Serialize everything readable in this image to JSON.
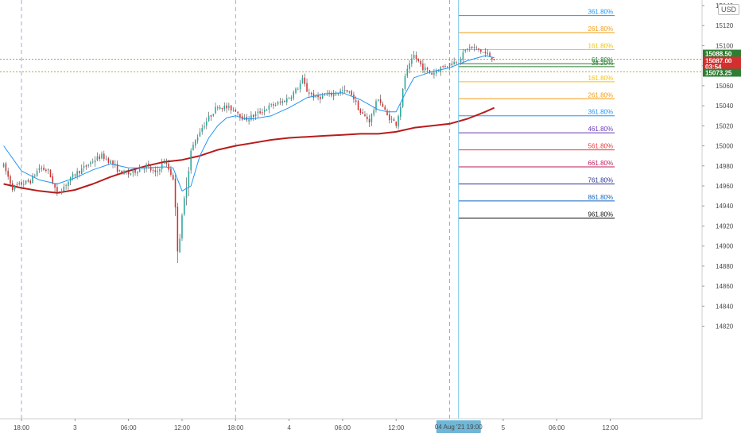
{
  "currency_label": "USD",
  "colors": {
    "bull": "#26a69a",
    "bear": "#d32f2f",
    "wick": "#444444",
    "ema_fast": "#2196f3",
    "ema_slow": "#b71c1c",
    "session_line": "#5b7fd6",
    "dotted_level": "#8d8d00",
    "grid": "#eeeeee"
  },
  "chart_data": {
    "type": "candlestick",
    "y_ticks": [
      15140,
      15120,
      15100,
      15080,
      15060,
      15040,
      15020,
      15000,
      14980,
      14960,
      14940,
      14920,
      14900,
      14880,
      14860,
      14840,
      14820
    ],
    "ylim": [
      14815,
      15150
    ],
    "x_ticks": [
      {
        "label": "18:00",
        "t": 0
      },
      {
        "label": "3",
        "t": 6
      },
      {
        "label": "06:00",
        "t": 12
      },
      {
        "label": "12:00",
        "t": 18
      },
      {
        "label": "18:00",
        "t": 24
      },
      {
        "label": "4",
        "t": 30
      },
      {
        "label": "06:00",
        "t": 36
      },
      {
        "label": "12:00",
        "t": 42
      },
      {
        "label": "5",
        "t": 54
      },
      {
        "label": "06:00",
        "t": 60
      },
      {
        "label": "12:00",
        "t": 66
      }
    ],
    "session_lines_t": [
      0,
      24,
      48
    ],
    "cursor": {
      "t": 49,
      "label": "04 Aug '21  19:00"
    },
    "candle_step_hours": 0.25,
    "close_path": [
      [
        -2,
        14980
      ],
      [
        -1,
        14958
      ],
      [
        0,
        14962
      ],
      [
        1,
        14965
      ],
      [
        2,
        14978
      ],
      [
        3,
        14975
      ],
      [
        4,
        14952
      ],
      [
        5,
        14962
      ],
      [
        6,
        14972
      ],
      [
        7,
        14978
      ],
      [
        8,
        14985
      ],
      [
        9,
        14990
      ],
      [
        10,
        14984
      ],
      [
        11,
        14974
      ],
      [
        12,
        14972
      ],
      [
        13,
        14976
      ],
      [
        14,
        14980
      ],
      [
        15,
        14972
      ],
      [
        16,
        14985
      ],
      [
        17,
        14968
      ],
      [
        17.5,
        14900
      ],
      [
        18,
        14925
      ],
      [
        18.5,
        14965
      ],
      [
        19,
        14995
      ],
      [
        20,
        15015
      ],
      [
        21,
        15028
      ],
      [
        22,
        15040
      ],
      [
        24,
        15036
      ],
      [
        25,
        15026
      ],
      [
        26,
        15030
      ],
      [
        27,
        15035
      ],
      [
        28,
        15040
      ],
      [
        29,
        15043
      ],
      [
        30,
        15048
      ],
      [
        31,
        15058
      ],
      [
        31.5,
        15066
      ],
      [
        32,
        15055
      ],
      [
        33,
        15048
      ],
      [
        34,
        15050
      ],
      [
        35,
        15052
      ],
      [
        36,
        15055
      ],
      [
        37,
        15052
      ],
      [
        38,
        15033
      ],
      [
        39,
        15025
      ],
      [
        40,
        15048
      ],
      [
        41,
        15030
      ],
      [
        42,
        15022
      ],
      [
        42.5,
        15040
      ],
      [
        43,
        15070
      ],
      [
        44,
        15090
      ],
      [
        45,
        15078
      ],
      [
        46,
        15072
      ],
      [
        47,
        15078
      ],
      [
        48,
        15082
      ],
      [
        49,
        15085
      ],
      [
        50,
        15098
      ],
      [
        51,
        15097
      ],
      [
        52,
        15092
      ],
      [
        53,
        15087
      ]
    ],
    "ema_fast": [
      [
        -2,
        15000
      ],
      [
        0,
        14975
      ],
      [
        2,
        14966
      ],
      [
        4,
        14962
      ],
      [
        6,
        14968
      ],
      [
        8,
        14976
      ],
      [
        10,
        14982
      ],
      [
        12,
        14978
      ],
      [
        14,
        14978
      ],
      [
        16,
        14979
      ],
      [
        17,
        14978
      ],
      [
        18,
        14955
      ],
      [
        19,
        14960
      ],
      [
        20,
        14990
      ],
      [
        21,
        15008
      ],
      [
        22,
        15020
      ],
      [
        23,
        15028
      ],
      [
        24,
        15030
      ],
      [
        25,
        15027
      ],
      [
        26,
        15027
      ],
      [
        28,
        15030
      ],
      [
        30,
        15038
      ],
      [
        32,
        15048
      ],
      [
        34,
        15052
      ],
      [
        36,
        15053
      ],
      [
        38,
        15046
      ],
      [
        40,
        15036
      ],
      [
        41,
        15034
      ],
      [
        42,
        15034
      ],
      [
        43,
        15052
      ],
      [
        44,
        15068
      ],
      [
        46,
        15074
      ],
      [
        48,
        15078
      ],
      [
        50,
        15085
      ],
      [
        52,
        15090
      ],
      [
        53,
        15088
      ]
    ],
    "ema_slow": [
      [
        -2,
        14962
      ],
      [
        0,
        14958
      ],
      [
        2,
        14955
      ],
      [
        4,
        14953
      ],
      [
        6,
        14956
      ],
      [
        8,
        14962
      ],
      [
        10,
        14969
      ],
      [
        12,
        14975
      ],
      [
        14,
        14980
      ],
      [
        16,
        14984
      ],
      [
        18,
        14986
      ],
      [
        20,
        14990
      ],
      [
        22,
        14996
      ],
      [
        24,
        15000
      ],
      [
        26,
        15003
      ],
      [
        28,
        15006
      ],
      [
        30,
        15008
      ],
      [
        32,
        15009
      ],
      [
        34,
        15010
      ],
      [
        36,
        15011
      ],
      [
        38,
        15012
      ],
      [
        40,
        15012
      ],
      [
        42,
        15014
      ],
      [
        44,
        15018
      ],
      [
        46,
        15020
      ],
      [
        48,
        15022
      ],
      [
        50,
        15027
      ],
      [
        52,
        15034
      ],
      [
        53,
        15038
      ]
    ],
    "dotted_levels": [
      15086.5,
      15074
    ],
    "fib_levels": [
      {
        "label": "361.80%",
        "price": 15130,
        "color": "#2196f3"
      },
      {
        "label": "261.80%",
        "price": 15113,
        "color": "#f39c12"
      },
      {
        "label": "161.80%",
        "price": 15096,
        "color": "#f1c40f"
      },
      {
        "label": "61.80%",
        "price": 15082,
        "color": "#2e7d32"
      },
      {
        "label": "38.20%",
        "price": 15079,
        "color": "#2e7d32"
      },
      {
        "label": "161.80%",
        "price": 15064,
        "color": "#f1c40f"
      },
      {
        "label": "261.80%",
        "price": 15047,
        "color": "#f39c12"
      },
      {
        "label": "361.80%",
        "price": 15030,
        "color": "#2196f3"
      },
      {
        "label": "461.80%",
        "price": 15013,
        "color": "#673ab7"
      },
      {
        "label": "561.80%",
        "price": 14996,
        "color": "#e53935"
      },
      {
        "label": "661.80%",
        "price": 14979,
        "color": "#c2185b"
      },
      {
        "label": "761.80%",
        "price": 14962,
        "color": "#283593"
      },
      {
        "label": "861.80%",
        "price": 14945,
        "color": "#1565c0"
      },
      {
        "label": "961.80%",
        "price": 14928,
        "color": "#111111"
      }
    ],
    "fib_start_t": 49,
    "fib_end_t": 66.5,
    "price_tags": [
      {
        "text": "15088.50",
        "price": 15092,
        "color": "#2e7d32"
      },
      {
        "text": "15087.00",
        "price": 15085,
        "color": "#d32f2f"
      },
      {
        "text": "03:54",
        "price": 15079,
        "color": "#d32f2f"
      },
      {
        "text": "15073.25",
        "price": 15073,
        "color": "#2e7d32"
      }
    ]
  }
}
